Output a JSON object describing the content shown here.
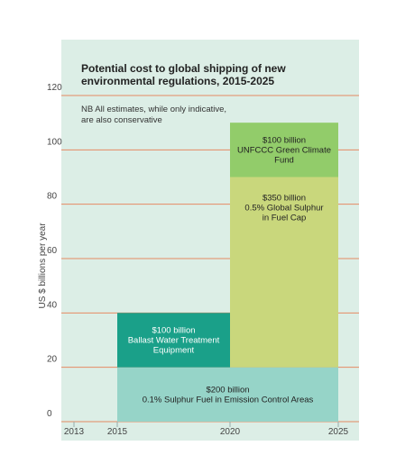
{
  "chart_data": {
    "type": "bar",
    "title": [
      "Potential cost to global shipping of new",
      "environmental regulations,  2015-2025"
    ],
    "note": [
      "NB All estimates, while only indicative,",
      "are also conservative"
    ],
    "ylabel": "US $ billions per year",
    "ylim": [
      0,
      120
    ],
    "yticks": [
      0,
      20,
      40,
      60,
      80,
      100,
      120
    ],
    "xticks": [
      "2013",
      "2015",
      "2020",
      "2025"
    ],
    "xlim": [
      2013,
      2025
    ],
    "grid": true,
    "segments": [
      {
        "x_start": 2015,
        "x_end": 2025,
        "y_start": 0,
        "y_end": 20,
        "color": "#96d4c8",
        "label": [
          "$200 billion",
          "0.1% Sulphur Fuel in Emission Control Areas"
        ]
      },
      {
        "x_start": 2015,
        "x_end": 2020,
        "y_start": 20,
        "y_end": 40,
        "color": "#1aa089",
        "label": [
          "$100 billion",
          "Ballast Water Treatment",
          "Equipment"
        ]
      },
      {
        "x_start": 2020,
        "x_end": 2025,
        "y_start": 20,
        "y_end": 90,
        "color": "#c9d77c",
        "label": [
          "$350 billion",
          "0.5% Global Sulphur",
          "in Fuel Cap"
        ]
      },
      {
        "x_start": 2020,
        "x_end": 2025,
        "y_start": 90,
        "y_end": 110,
        "color": "#92cc6a",
        "label": [
          "$100 billion",
          "UNFCCC Green Climate",
          "Fund"
        ]
      }
    ],
    "colors": {
      "background": "#dceee6",
      "grid": "#e58a63",
      "tick_line": "#9aa"
    }
  }
}
